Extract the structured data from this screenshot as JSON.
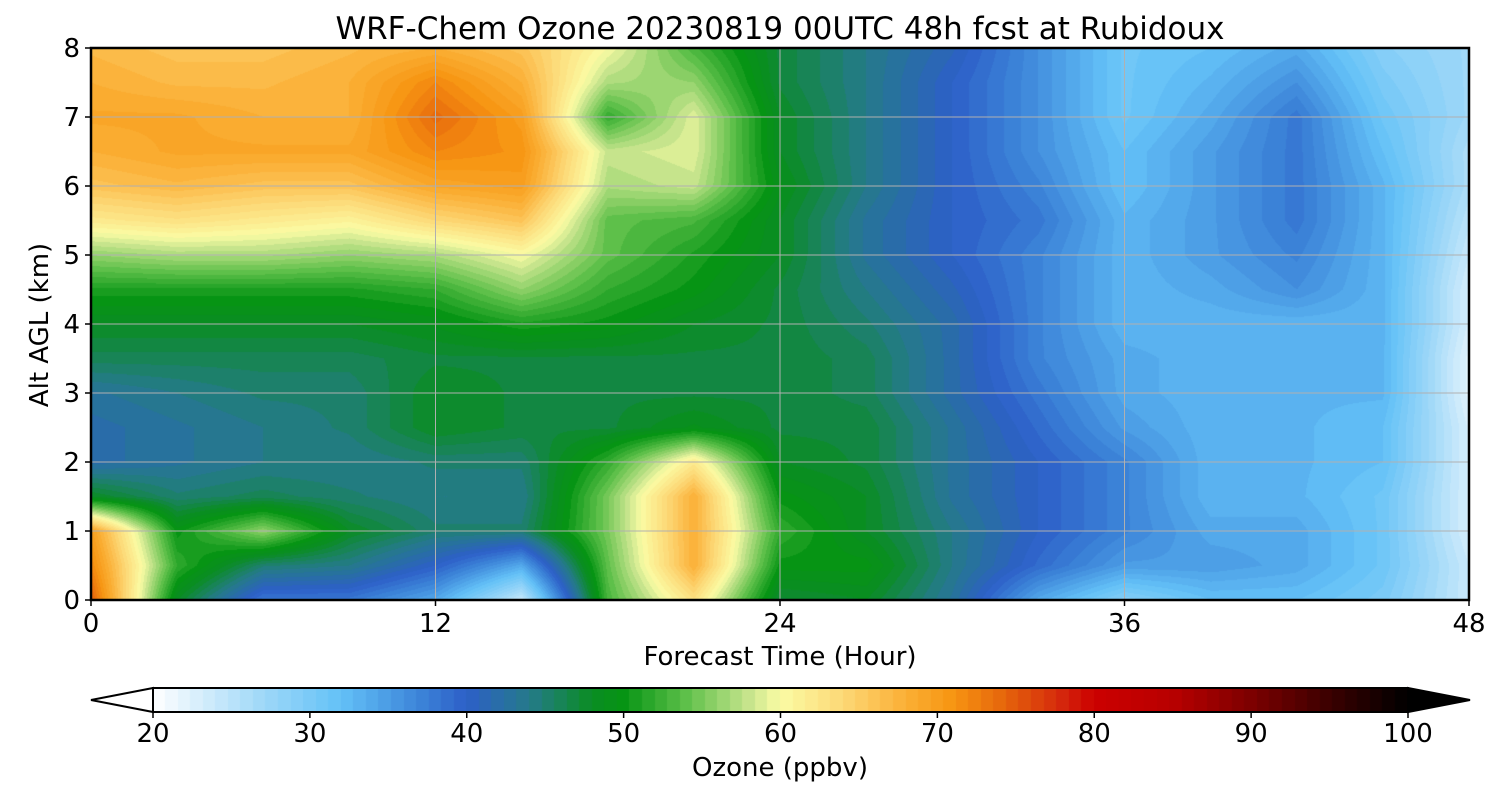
{
  "chart_data": {
    "type": "heatmap",
    "title": "WRF-Chem Ozone  20230819 00UTC 48h fcst at Rubidoux",
    "xlabel": "Forecast Time (Hour)",
    "ylabel": "Alt AGL (km)",
    "xlim": [
      0,
      48
    ],
    "ylim": [
      0,
      8
    ],
    "xticks": [
      0,
      12,
      24,
      36,
      48
    ],
    "yticks": [
      0,
      1,
      2,
      3,
      4,
      5,
      6,
      7,
      8
    ],
    "grid": true,
    "x": [
      0,
      3,
      6,
      9,
      12,
      15,
      18,
      21,
      24,
      27,
      30,
      33,
      36,
      39,
      42,
      45,
      48
    ],
    "y": [
      0,
      0.5,
      1,
      1.5,
      2,
      2.5,
      3,
      3.5,
      4,
      4.5,
      5,
      5.5,
      6,
      6.5,
      7,
      7.5,
      8
    ],
    "values": [
      [
        75,
        48,
        38,
        38,
        34,
        24,
        53,
        63,
        47,
        48,
        43,
        34,
        29,
        32,
        32,
        30,
        24
      ],
      [
        72,
        52,
        45,
        44,
        40,
        34,
        54,
        68,
        50,
        50,
        44,
        39,
        35,
        35,
        34,
        31,
        24
      ],
      [
        70,
        50,
        56,
        48,
        45,
        45,
        55,
        68,
        52,
        48,
        44,
        40,
        37,
        34,
        34,
        31,
        23
      ],
      [
        48,
        45,
        46,
        45,
        44,
        44,
        55,
        68,
        50,
        48,
        43,
        40,
        37,
        33,
        33,
        31,
        23
      ],
      [
        42,
        43,
        44,
        44,
        45,
        45,
        52,
        62,
        48,
        47,
        43,
        40,
        37,
        33,
        33,
        32,
        23
      ],
      [
        42,
        43,
        44,
        45,
        48,
        47,
        47,
        49,
        47,
        47,
        43,
        39,
        35,
        33,
        33,
        32,
        23
      ],
      [
        43,
        44,
        45,
        45,
        48,
        47,
        47,
        47,
        47,
        46,
        42,
        38,
        34,
        33,
        33,
        33,
        22
      ],
      [
        46,
        46,
        46,
        46,
        47,
        47,
        47,
        47,
        47,
        46,
        42,
        37,
        34,
        33,
        33,
        33,
        22
      ],
      [
        48,
        48,
        48,
        48,
        49,
        51,
        50,
        48,
        47,
        45,
        42,
        37,
        33,
        33,
        33,
        33,
        23
      ],
      [
        51,
        51,
        51,
        51,
        52,
        56,
        52,
        50,
        47,
        44,
        41,
        37,
        33,
        34,
        36,
        33,
        23
      ],
      [
        56,
        57,
        57,
        56,
        57,
        60,
        54,
        51,
        48,
        43,
        40,
        37,
        33,
        35,
        37,
        33,
        24
      ],
      [
        62,
        63,
        62,
        61,
        64,
        66,
        54,
        53,
        48,
        43,
        40,
        38,
        33,
        35,
        38,
        33,
        25
      ],
      [
        66,
        67,
        66,
        66,
        69,
        70,
        57,
        58,
        49,
        44,
        40,
        37,
        32,
        35,
        38,
        33,
        26
      ],
      [
        68,
        69,
        69,
        69,
        72,
        71,
        58,
        59,
        48,
        44,
        40,
        36,
        32,
        35,
        38,
        32,
        26
      ],
      [
        69,
        69,
        68,
        68,
        74,
        70,
        52,
        59,
        48,
        44,
        40,
        36,
        31,
        34,
        38,
        31,
        27
      ],
      [
        68,
        67,
        67,
        68,
        72,
        68,
        57,
        56,
        47,
        44,
        40,
        36,
        31,
        33,
        36,
        30,
        27
      ],
      [
        67,
        66,
        66,
        67,
        68,
        66,
        60,
        53,
        47,
        44,
        41,
        36,
        31,
        32,
        34,
        29,
        27
      ]
    ],
    "colorbar": {
      "label": "Ozone  (ppbv)",
      "min": 20,
      "max": 100,
      "ticks": [
        20,
        30,
        40,
        50,
        60,
        70,
        80,
        90,
        100
      ],
      "extend": "both",
      "stops": [
        {
          "v": 20,
          "c": "#ffffff"
        },
        {
          "v": 27,
          "c": "#9fd8f8"
        },
        {
          "v": 32,
          "c": "#63c1f7"
        },
        {
          "v": 37,
          "c": "#3c84d8"
        },
        {
          "v": 40,
          "c": "#2d5fc8"
        },
        {
          "v": 44,
          "c": "#257a8a"
        },
        {
          "v": 48,
          "c": "#0a8d23"
        },
        {
          "v": 50,
          "c": "#069414"
        },
        {
          "v": 54,
          "c": "#5ec04a"
        },
        {
          "v": 58,
          "c": "#c6e48c"
        },
        {
          "v": 60,
          "c": "#fbfca4"
        },
        {
          "v": 64,
          "c": "#fcd877"
        },
        {
          "v": 68,
          "c": "#fbaf35"
        },
        {
          "v": 71,
          "c": "#f79512"
        },
        {
          "v": 74,
          "c": "#e76a0c"
        },
        {
          "v": 78,
          "c": "#d4260c"
        },
        {
          "v": 80,
          "c": "#cc0000"
        },
        {
          "v": 85,
          "c": "#b80000"
        },
        {
          "v": 90,
          "c": "#7d0000"
        },
        {
          "v": 95,
          "c": "#3b0000"
        },
        {
          "v": 100,
          "c": "#000000"
        }
      ]
    }
  }
}
